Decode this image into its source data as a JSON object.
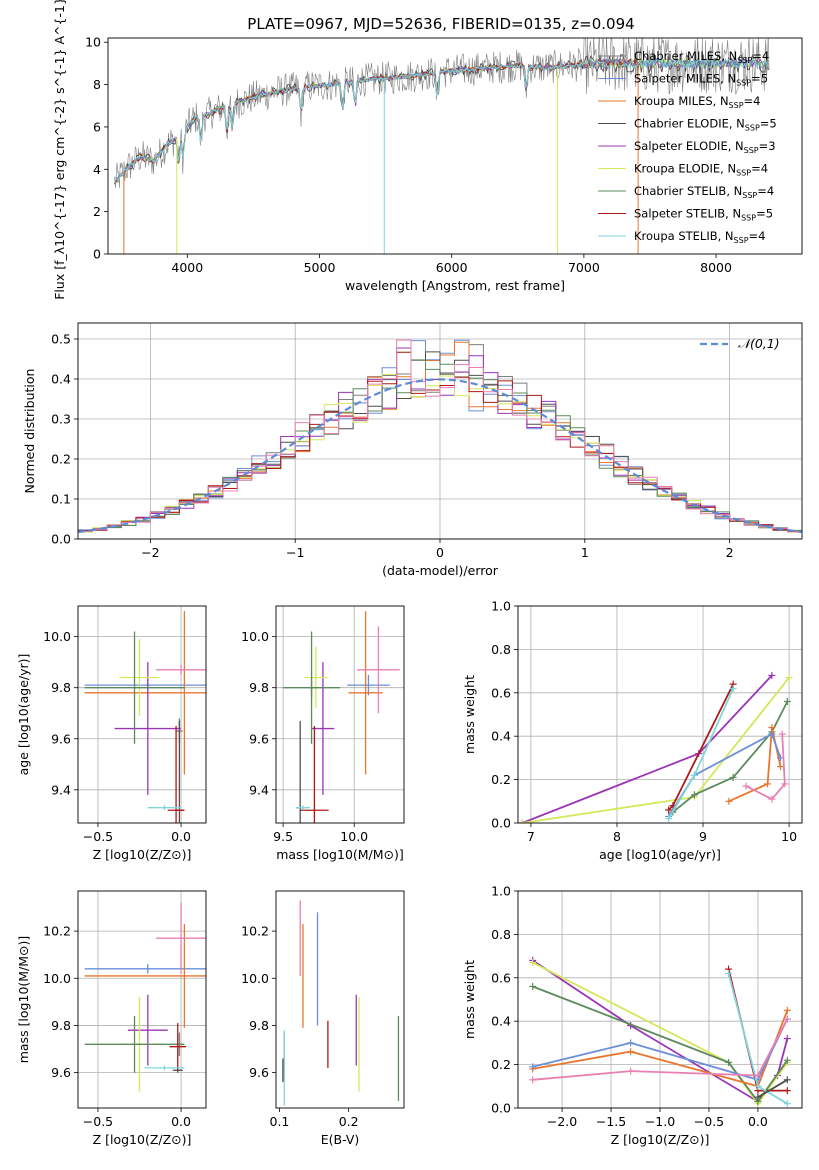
{
  "figure": {
    "title": "PLATE=0967, MJD=52636, FIBERID=0135, z=0.094"
  },
  "series": [
    {
      "name": "Chabrier MILES",
      "nssp": "4",
      "color": "#7f7f7f"
    },
    {
      "name": "Salpeter MILES",
      "nssp": "5",
      "color": "#6a8fd8"
    },
    {
      "name": "Kroupa MILES",
      "nssp": "4",
      "color": "#e8772e"
    },
    {
      "name": "Chabrier ELODIE",
      "nssp": "5",
      "color": "#4f4f4f"
    },
    {
      "name": "Salpeter ELODIE",
      "nssp": "3",
      "color": "#9b35b5"
    },
    {
      "name": "Kroupa ELODIE",
      "nssp": "4",
      "color": "#d4e85a"
    },
    {
      "name": "Chabrier STELIB",
      "nssp": "4",
      "color": "#5c8a5c"
    },
    {
      "name": "Salpeter STELIB",
      "nssp": "5",
      "color": "#b01818"
    },
    {
      "name": "Kroupa STELIB",
      "nssp": "4",
      "color": "#7fd6dc"
    },
    {
      "name": "",
      "nssp": "",
      "color": "#e87fb3"
    }
  ],
  "chart_data": [
    {
      "id": "spectrum",
      "type": "line",
      "xlabel": "wavelength [Angstrom, rest frame]",
      "ylabel": "Flux [f_λ10^{-17} erg cm^{-2} s^{-1} A^{-1}]",
      "xlim": [
        3400,
        8650
      ],
      "ylim": [
        0,
        10.2
      ],
      "xticks": [
        4000,
        5000,
        6000,
        7000,
        8000
      ],
      "yticks": [
        0,
        2,
        4,
        6,
        8,
        10
      ],
      "grid": false,
      "legend_position": "right",
      "continuum": {
        "x": [
          3450,
          3550,
          3650,
          3750,
          3850,
          3950,
          4050,
          4150,
          4300,
          4500,
          4700,
          4900,
          5100,
          5300,
          5500,
          5700,
          5900,
          6100,
          6300,
          6500,
          6700,
          6900,
          7100,
          7300,
          7400
        ],
        "y": [
          3.4,
          4.1,
          4.6,
          4.4,
          5.2,
          5.6,
          6.4,
          6.6,
          7.0,
          7.4,
          7.7,
          7.9,
          8.0,
          8.2,
          8.3,
          8.4,
          8.6,
          8.7,
          8.8,
          8.9,
          8.8,
          8.9,
          9.0,
          9.0,
          9.0
        ]
      }
    },
    {
      "id": "residuals",
      "type": "histogram",
      "xlabel": "(data-model)/error",
      "ylabel": "Normed distribution",
      "xlim": [
        -2.5,
        2.5
      ],
      "ylim": [
        0,
        0.54
      ],
      "xticks": [
        -2,
        -1,
        0,
        1,
        2
      ],
      "yticks": [
        0.0,
        0.1,
        0.2,
        0.3,
        0.4,
        0.5
      ],
      "grid": true,
      "legend": "𝒩(0,1)",
      "legend_position": "top-right",
      "bin_width": 0.1,
      "bin_start": -2.5,
      "normal_mean": 0,
      "normal_sigma": 1
    },
    {
      "id": "age_vs_z",
      "type": "errorbar",
      "xlabel": "Z [log10(Z/Z⊙)]",
      "ylabel": "age [log10(age/yr)]",
      "xlim": [
        -0.62,
        0.15
      ],
      "ylim": [
        9.27,
        10.12
      ],
      "xticks": [
        -0.5,
        0.0
      ],
      "yticks": [
        9.4,
        9.6,
        9.8,
        10.0
      ],
      "grid": true,
      "points": [
        {
          "s": 0,
          "x": -0.01,
          "xerr": 0.02,
          "y": 9.63,
          "yerr": 0.05
        },
        {
          "s": 1,
          "x": -0.2,
          "xerr": 0.38,
          "y": 9.81,
          "yerr": 0.02
        },
        {
          "s": 2,
          "x": 0.02,
          "xerr": 0.6,
          "y": 9.78,
          "yerr": 0.32
        },
        {
          "s": 3,
          "x": -0.01,
          "xerr": 0.03,
          "y": 9.32,
          "yerr": 0.35
        },
        {
          "s": 4,
          "x": -0.2,
          "xerr": 0.2,
          "y": 9.64,
          "yerr": 0.26
        },
        {
          "s": 5,
          "x": -0.25,
          "xerr": 0.12,
          "y": 9.84,
          "yerr": 0.15
        },
        {
          "s": 6,
          "x": -0.28,
          "xerr": 0.3,
          "y": 9.8,
          "yerr": 0.22
        },
        {
          "s": 7,
          "x": -0.03,
          "xerr": 0.05,
          "y": 9.32,
          "yerr": 0.33
        },
        {
          "s": 8,
          "x": -0.1,
          "xerr": 0.1,
          "y": 9.33,
          "yerr": 0.01
        },
        {
          "s": 9,
          "x": 0.0,
          "xerr": 0.15,
          "y": 9.87,
          "yerr": 0.02
        }
      ]
    },
    {
      "id": "age_vs_mass",
      "type": "errorbar",
      "xlabel": "mass [log10(M/M⊙)]",
      "ylabel": "",
      "xlim": [
        9.45,
        10.35
      ],
      "ylim": [
        9.27,
        10.12
      ],
      "xticks": [
        9.5,
        10.0
      ],
      "yticks": [
        9.4,
        9.6,
        9.8,
        10.0
      ],
      "grid": true,
      "points": [
        {
          "s": 0,
          "x": 9.7,
          "xerr": 0.02,
          "y": 9.8,
          "yerr": 0.04
        },
        {
          "s": 1,
          "x": 10.1,
          "xerr": 0.15,
          "y": 9.81,
          "yerr": 0.04
        },
        {
          "s": 2,
          "x": 10.08,
          "xerr": 0.12,
          "y": 9.78,
          "yerr": 0.32
        },
        {
          "s": 3,
          "x": 9.62,
          "xerr": 0.03,
          "y": 9.33,
          "yerr": 0.34
        },
        {
          "s": 4,
          "x": 9.78,
          "xerr": 0.08,
          "y": 9.64,
          "yerr": 0.26
        },
        {
          "s": 5,
          "x": 9.73,
          "xerr": 0.08,
          "y": 9.84,
          "yerr": 0.12
        },
        {
          "s": 6,
          "x": 9.7,
          "xerr": 0.2,
          "y": 9.8,
          "yerr": 0.22
        },
        {
          "s": 7,
          "x": 9.72,
          "xerr": 0.1,
          "y": 9.32,
          "yerr": 0.33
        },
        {
          "s": 8,
          "x": 9.64,
          "xerr": 0.05,
          "y": 9.33,
          "yerr": 0.01
        },
        {
          "s": 9,
          "x": 10.17,
          "xerr": 0.15,
          "y": 9.87,
          "yerr": 0.17
        }
      ]
    },
    {
      "id": "weight_vs_age",
      "type": "line",
      "xlabel": "age [log10(age/yr)]",
      "ylabel": "mass weight",
      "xlim": [
        6.85,
        10.15
      ],
      "ylim": [
        0,
        1
      ],
      "xticks": [
        7,
        8,
        9,
        10
      ],
      "yticks": [
        0.0,
        0.2,
        0.4,
        0.6,
        0.8,
        1.0
      ],
      "grid": true,
      "lines": [
        {
          "s": 4,
          "x": [
            6.9,
            8.95,
            9.8
          ],
          "y": [
            0.0,
            0.32,
            0.68
          ]
        },
        {
          "s": 5,
          "x": [
            6.9,
            8.9,
            10.0
          ],
          "y": [
            0.0,
            0.12,
            0.67
          ]
        },
        {
          "s": 6,
          "x": [
            8.65,
            8.9,
            9.35,
            9.8,
            9.98
          ],
          "y": [
            0.05,
            0.13,
            0.21,
            0.42,
            0.56
          ]
        },
        {
          "s": 7,
          "x": [
            8.6,
            8.65,
            9.35
          ],
          "y": [
            0.06,
            0.08,
            0.64
          ]
        },
        {
          "s": 2,
          "x": [
            9.3,
            9.75,
            9.8,
            9.9
          ],
          "y": [
            0.1,
            0.18,
            0.44,
            0.26
          ]
        },
        {
          "s": 1,
          "x": [
            8.6,
            8.9,
            9.8,
            9.9
          ],
          "y": [
            0.03,
            0.22,
            0.41,
            0.3
          ]
        },
        {
          "s": 8,
          "x": [
            8.6,
            8.9,
            9.35
          ],
          "y": [
            0.02,
            0.22,
            0.62
          ]
        },
        {
          "s": 9,
          "x": [
            9.5,
            9.8,
            9.95,
            9.92
          ],
          "y": [
            0.17,
            0.11,
            0.18,
            0.41
          ]
        }
      ]
    },
    {
      "id": "mass_vs_z",
      "type": "errorbar",
      "xlabel": "Z [log10(Z/Z⊙)]",
      "ylabel": "mass [log10(M/M⊙)]",
      "xlim": [
        -0.62,
        0.15
      ],
      "ylim": [
        9.45,
        10.37
      ],
      "xticks": [
        -0.5,
        0.0
      ],
      "yticks": [
        9.6,
        9.8,
        10.0,
        10.2
      ],
      "grid": true,
      "points": [
        {
          "s": 0,
          "x": -0.01,
          "xerr": 0.02,
          "y": 9.72,
          "yerr": 0.05
        },
        {
          "s": 1,
          "x": -0.2,
          "xerr": 0.38,
          "y": 10.04,
          "yerr": 0.02
        },
        {
          "s": 2,
          "x": 0.02,
          "xerr": 0.6,
          "y": 10.01,
          "yerr": 0.22
        },
        {
          "s": 3,
          "x": -0.02,
          "xerr": 0.03,
          "y": 9.61,
          "yerr": 0.01
        },
        {
          "s": 4,
          "x": -0.2,
          "xerr": 0.12,
          "y": 9.78,
          "yerr": 0.15
        },
        {
          "s": 5,
          "x": -0.25,
          "xerr": 0.12,
          "y": 9.72,
          "yerr": 0.2
        },
        {
          "s": 6,
          "x": -0.28,
          "xerr": 0.3,
          "y": 9.72,
          "yerr": 0.12
        },
        {
          "s": 7,
          "x": -0.02,
          "xerr": 0.05,
          "y": 9.71,
          "yerr": 0.1
        },
        {
          "s": 8,
          "x": -0.1,
          "xerr": 0.12,
          "y": 9.62,
          "yerr": 0.01
        },
        {
          "s": 9,
          "x": 0.0,
          "xerr": 0.15,
          "y": 10.17,
          "yerr": 0.15
        }
      ]
    },
    {
      "id": "mass_vs_ebv",
      "type": "errorbar",
      "xlabel": "E(B-V)",
      "ylabel": "",
      "xlim": [
        0.095,
        0.28
      ],
      "ylim": [
        9.45,
        10.37
      ],
      "xticks": [
        0.1,
        0.2
      ],
      "yticks": [
        9.6,
        9.8,
        10.0,
        10.2
      ],
      "grid": false,
      "points": [
        {
          "s": 0,
          "x": 0.107,
          "y": 9.67,
          "yerr": 0.1
        },
        {
          "s": 1,
          "x": 0.155,
          "y": 10.04,
          "yerr": 0.24
        },
        {
          "s": 2,
          "x": 0.134,
          "y": 10.01,
          "yerr": 0.22
        },
        {
          "s": 3,
          "x": 0.105,
          "y": 9.61,
          "yerr": 0.05
        },
        {
          "s": 4,
          "x": 0.211,
          "y": 9.78,
          "yerr": 0.15
        },
        {
          "s": 5,
          "x": 0.215,
          "y": 9.72,
          "yerr": 0.2
        },
        {
          "s": 6,
          "x": 0.272,
          "y": 9.66,
          "yerr": 0.18
        },
        {
          "s": 7,
          "x": 0.17,
          "y": 9.72,
          "yerr": 0.1
        },
        {
          "s": 8,
          "x": 0.107,
          "y": 9.62,
          "yerr": 0.16
        },
        {
          "s": 9,
          "x": 0.13,
          "y": 10.17,
          "yerr": 0.16
        }
      ]
    },
    {
      "id": "weight_vs_z",
      "type": "line",
      "xlabel": "Z [log10(Z/Z⊙)]",
      "ylabel": "mass weight",
      "xlim": [
        -2.45,
        0.45
      ],
      "ylim": [
        0,
        1
      ],
      "xticks": [
        -2.0,
        -1.5,
        -1.0,
        -0.5,
        0.0
      ],
      "yticks": [
        0.0,
        0.2,
        0.4,
        0.6,
        0.8,
        1.0
      ],
      "grid": true,
      "lines": [
        {
          "s": 4,
          "x": [
            -2.3,
            -1.3,
            0.0,
            0.2,
            0.3
          ],
          "y": [
            0.68,
            0.38,
            0.03,
            0.15,
            0.32
          ]
        },
        {
          "s": 5,
          "x": [
            -2.3,
            -0.3,
            0.0,
            0.3
          ],
          "y": [
            0.67,
            0.21,
            0.02,
            0.21
          ]
        },
        {
          "s": 6,
          "x": [
            -2.3,
            -0.3,
            0.0,
            0.3
          ],
          "y": [
            0.56,
            0.21,
            0.03,
            0.22
          ]
        },
        {
          "s": 7,
          "x": [
            -0.3,
            0.0,
            0.3
          ],
          "y": [
            0.64,
            0.08,
            0.08
          ]
        },
        {
          "s": 2,
          "x": [
            -2.3,
            -1.3,
            0.0,
            0.3
          ],
          "y": [
            0.18,
            0.26,
            0.1,
            0.45
          ]
        },
        {
          "s": 1,
          "x": [
            -2.3,
            -1.3,
            0.0,
            0.3
          ],
          "y": [
            0.19,
            0.3,
            0.13,
            0.41
          ]
        },
        {
          "s": 8,
          "x": [
            -0.3,
            0.0,
            0.3
          ],
          "y": [
            0.62,
            0.1,
            0.02
          ]
        },
        {
          "s": 9,
          "x": [
            -2.3,
            -1.3,
            0.0,
            0.3
          ],
          "y": [
            0.13,
            0.17,
            0.15,
            0.41
          ]
        },
        {
          "s": 3,
          "x": [
            0.0,
            0.3
          ],
          "y": [
            0.05,
            0.13
          ]
        }
      ]
    }
  ]
}
